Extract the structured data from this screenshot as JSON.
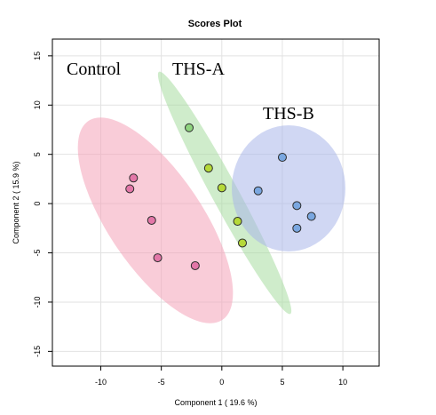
{
  "chart_data": {
    "type": "scatter",
    "title": "Scores Plot",
    "xlabel": "Component 1 ( 19.6 %)",
    "ylabel": "Component 2 ( 15.9 %)",
    "xlim": [
      -14,
      13
    ],
    "ylim": [
      -16.5,
      16.7
    ],
    "xticks": [
      -10,
      -5,
      0,
      5,
      10
    ],
    "yticks": [
      -15,
      -10,
      -5,
      0,
      5,
      10,
      15
    ],
    "grid": true,
    "legend": "none",
    "series": [
      {
        "name": "Control",
        "color": "#e377a8",
        "ellipse_color": "#f4a3b8",
        "points": [
          {
            "x": -7.3,
            "y": 2.6
          },
          {
            "x": -7.6,
            "y": 1.5
          },
          {
            "x": -5.8,
            "y": -1.7
          },
          {
            "x": -5.3,
            "y": -5.5
          },
          {
            "x": -2.2,
            "y": -6.3
          }
        ]
      },
      {
        "name": "THS-A",
        "color": "#b5d938",
        "ellipse_color": "#a8dca0",
        "points": [
          {
            "x": -2.7,
            "y": 7.7,
            "color": "#8fd47f"
          },
          {
            "x": -1.1,
            "y": 3.6
          },
          {
            "x": 0.0,
            "y": 1.6
          },
          {
            "x": 1.3,
            "y": -1.8
          },
          {
            "x": 1.7,
            "y": -4.0
          }
        ]
      },
      {
        "name": "THS-B",
        "color": "#7aa7e0",
        "ellipse_color": "#a9b6ea",
        "points": [
          {
            "x": 5.0,
            "y": 4.7
          },
          {
            "x": 3.0,
            "y": 1.3
          },
          {
            "x": 6.2,
            "y": -0.2
          },
          {
            "x": 7.4,
            "y": -1.3
          },
          {
            "x": 6.2,
            "y": -2.5
          }
        ]
      }
    ]
  }
}
